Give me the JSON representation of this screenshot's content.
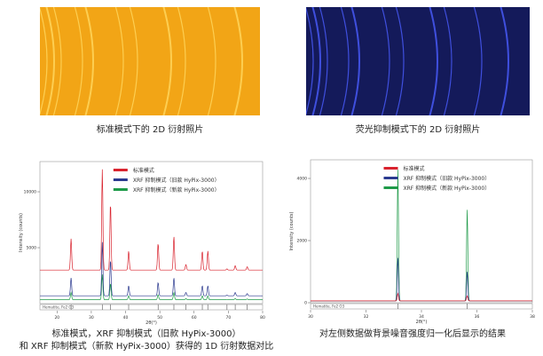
{
  "images": [
    {
      "caption": "标准模式下的 2D 衍射照片",
      "color": "#f2a516",
      "ring_color": "#ffd860"
    },
    {
      "caption": "荧光抑制模式下的  2D 衍射照片",
      "color": "#141a5a",
      "ring_color": "#4a5cff"
    }
  ],
  "captions": {
    "left_line1": "标准模式，XRF 抑制模式（旧款 HyPix-3000）",
    "left_line2": "和 XRF 抑制模式（新款 HyPix-3000）获得的 1D 衍射数据对比",
    "right": "对左侧数据做背景噪音强度归一化后显示的结果"
  },
  "chart_data": [
    {
      "type": "line",
      "xlabel": "2θ(°)",
      "ylabel": "Intensity (counts)",
      "xlim": [
        15,
        80
      ],
      "ylim": [
        0,
        12700
      ],
      "xticks": [
        20,
        30,
        40,
        50,
        60,
        70,
        80
      ],
      "yticks": [
        5000,
        10000
      ],
      "grid": false,
      "legend": "top-center",
      "reference_label": "Hematite, Fe2 O3",
      "peaks_x": [
        24.1,
        33.2,
        35.6,
        40.9,
        49.5,
        54.1,
        57.6,
        62.4,
        64.0,
        69.6,
        72.0,
        75.5
      ],
      "series": [
        {
          "name": "标准模式",
          "color": "#d9232e",
          "baseline": 3000,
          "peaks": [
            5800,
            12000,
            9000,
            4700,
            5400,
            6000,
            3500,
            4700,
            4700,
            3100,
            3400,
            3300
          ]
        },
        {
          "name": "XRF 抑制模式（旧款 HyPix-3000）",
          "color": "#2b3a8f",
          "baseline": 700,
          "peaks": [
            2300,
            5500,
            3900,
            1600,
            1900,
            2300,
            1000,
            1600,
            1600,
            750,
            1000,
            900
          ]
        },
        {
          "name": "XRF 抑制模式（新款 HyPix-3000）",
          "color": "#1e9a48",
          "baseline": 350,
          "peaks": [
            1000,
            2600,
            1800,
            700,
            800,
            1000,
            450,
            700,
            700,
            380,
            450,
            420
          ]
        }
      ]
    },
    {
      "type": "line",
      "xlabel": "2θ(°)",
      "ylabel": "Intensity (counts)",
      "xlim": [
        30,
        38
      ],
      "ylim": [
        0,
        4600
      ],
      "xticks": [
        30,
        32,
        34,
        36,
        38
      ],
      "yticks": [
        0,
        2000,
        4000
      ],
      "grid": false,
      "legend": "top-center",
      "reference_label": "Hematite, Fe2 O3",
      "peaks_x": [
        33.15,
        35.65
      ],
      "series": [
        {
          "name": "标准模式",
          "color": "#d9232e",
          "baseline": 60,
          "peaks": [
            300,
            220
          ]
        },
        {
          "name": "XRF 抑制模式（旧款 HyPix-3000）",
          "color": "#2b3a8f",
          "baseline": 60,
          "peaks": [
            1450,
            1000
          ]
        },
        {
          "name": "XRF 抑制模式（新款 HyPix-3000）",
          "color": "#1e9a48",
          "baseline": 60,
          "peaks": [
            4300,
            3000
          ]
        }
      ]
    }
  ]
}
